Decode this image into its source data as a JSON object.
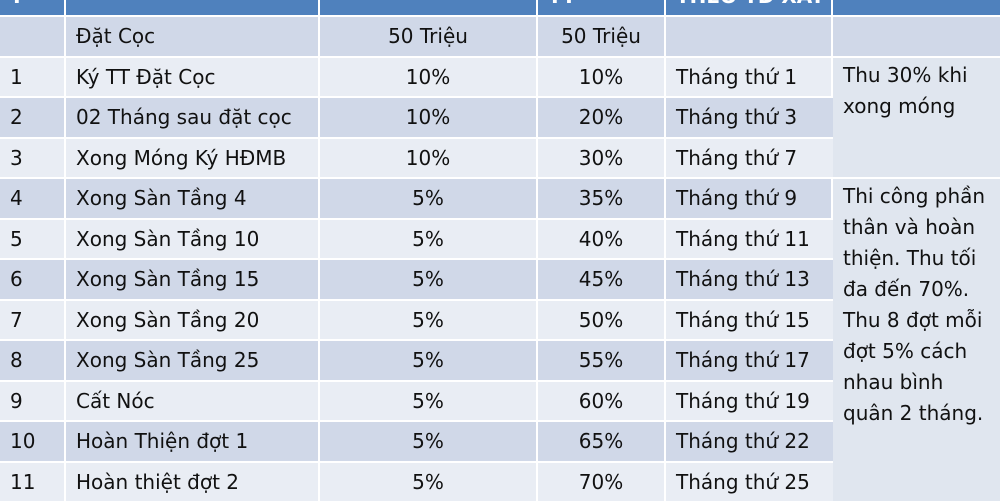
{
  "header": {
    "cells": [
      "T",
      "",
      "",
      "TT",
      "THEO TĐ XÂY",
      ""
    ]
  },
  "rows": [
    {
      "stt": "",
      "item": "Đặt Cọc",
      "amount": "50 Triệu",
      "cumulative": "50 Triệu",
      "schedule": ""
    },
    {
      "stt": "1",
      "item": "Ký TT Đặt Cọc",
      "amount": "10%",
      "cumulative": "10%",
      "schedule": "Tháng thứ 1"
    },
    {
      "stt": "2",
      "item": "02 Tháng sau đặt cọc",
      "amount": "10%",
      "cumulative": "20%",
      "schedule": "Tháng thứ 3"
    },
    {
      "stt": "3",
      "item": "Xong Móng Ký HĐMB",
      "amount": "10%",
      "cumulative": "30%",
      "schedule": "Tháng thứ 7"
    },
    {
      "stt": "4",
      "item": "Xong Sàn Tầng 4",
      "amount": "5%",
      "cumulative": "35%",
      "schedule": "Tháng thứ 9"
    },
    {
      "stt": "5",
      "item": "Xong Sàn Tầng 10",
      "amount": "5%",
      "cumulative": "40%",
      "schedule": "Tháng thứ 11"
    },
    {
      "stt": "6",
      "item": "Xong Sàn Tầng 15",
      "amount": "5%",
      "cumulative": "45%",
      "schedule": "Tháng thứ 13"
    },
    {
      "stt": "7",
      "item": "Xong Sàn Tầng 20",
      "amount": "5%",
      "cumulative": "50%",
      "schedule": "Tháng thứ 15"
    },
    {
      "stt": "8",
      "item": "Xong Sàn Tầng 25",
      "amount": "5%",
      "cumulative": "55%",
      "schedule": "Tháng thứ 17"
    },
    {
      "stt": "9",
      "item": "Cất Nóc",
      "amount": "5%",
      "cumulative": "60%",
      "schedule": "Tháng thứ 19"
    },
    {
      "stt": "10",
      "item": "Hoàn Thiện đợt 1",
      "amount": "5%",
      "cumulative": "65%",
      "schedule": "Tháng thứ 22"
    },
    {
      "stt": "11",
      "item": "Hoàn thiệt đợt 2",
      "amount": "5%",
      "cumulative": "70%",
      "schedule": "Tháng thứ 25"
    }
  ],
  "notes": {
    "foundation": "Thu 30% khi xong móng",
    "construction": "Thi công phần thân và hoàn thiện. Thu tối đa đến 70%. Thu 8 đợt mỗi đợt 5% cách nhau bình quân 2 tháng."
  },
  "colors": {
    "header": "#4f81bd",
    "row_dark": "#d0d8e8",
    "row_light": "#e9edf4"
  }
}
